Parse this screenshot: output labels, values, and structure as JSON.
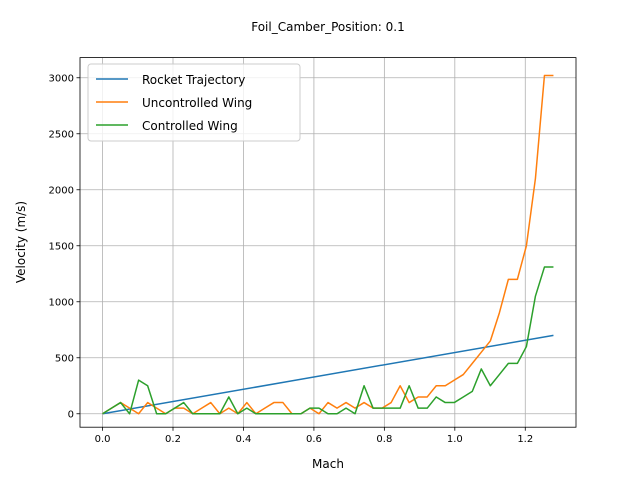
{
  "chart_data": {
    "type": "line",
    "title": "Foil_Camber_Position: 0.1",
    "xlabel": "Mach",
    "ylabel": "Velocity (m/s)",
    "xlim": [
      -0.064,
      1.344
    ],
    "ylim": [
      -120,
      3180
    ],
    "xticks": [
      0.0,
      0.2,
      0.4,
      0.6,
      0.8,
      1.0,
      1.2
    ],
    "xtick_labels": [
      "0.0",
      "0.2",
      "0.4",
      "0.6",
      "0.8",
      "1.0",
      "1.2"
    ],
    "yticks": [
      0,
      500,
      1000,
      1500,
      2000,
      2500,
      3000
    ],
    "ytick_labels": [
      "0",
      "500",
      "1000",
      "1500",
      "2000",
      "2500",
      "3000"
    ],
    "grid": true,
    "legend_position": "top-left",
    "x": [
      0.0,
      0.0256,
      0.0512,
      0.0768,
      0.1024,
      0.128,
      0.1536,
      0.1792,
      0.2048,
      0.2304,
      0.256,
      0.2816,
      0.3072,
      0.3328,
      0.3584,
      0.384,
      0.4096,
      0.4352,
      0.4608,
      0.4864,
      0.512,
      0.5376,
      0.5632,
      0.5888,
      0.6144,
      0.64,
      0.6656,
      0.6912,
      0.7168,
      0.7424,
      0.768,
      0.7936,
      0.8192,
      0.8448,
      0.8704,
      0.896,
      0.9216,
      0.9472,
      0.9728,
      0.9984,
      1.024,
      1.0496,
      1.0752,
      1.1008,
      1.1264,
      1.152,
      1.1776,
      1.2032,
      1.2288,
      1.2544,
      1.28
    ],
    "series": [
      {
        "name": "Rocket Trajectory",
        "color": "#1f77b4",
        "x": [
          0.0,
          1.28
        ],
        "values": [
          0,
          700
        ]
      },
      {
        "name": "Uncontrolled Wing",
        "color": "#ff7f0e",
        "values": [
          0,
          50,
          100,
          50,
          0,
          100,
          50,
          0,
          50,
          50,
          0,
          50,
          100,
          0,
          50,
          0,
          100,
          0,
          50,
          100,
          100,
          0,
          0,
          50,
          0,
          100,
          50,
          100,
          50,
          100,
          50,
          50,
          100,
          250,
          100,
          150,
          150,
          250,
          250,
          300,
          350,
          450,
          550,
          650,
          900,
          1200,
          1200,
          1500,
          2100,
          3020,
          3020
        ]
      },
      {
        "name": "Controlled Wing",
        "color": "#2ca02c",
        "values": [
          0,
          50,
          100,
          0,
          300,
          250,
          0,
          0,
          50,
          100,
          0,
          0,
          0,
          0,
          150,
          0,
          50,
          0,
          0,
          0,
          0,
          0,
          0,
          50,
          50,
          0,
          0,
          50,
          0,
          250,
          50,
          50,
          50,
          50,
          250,
          50,
          50,
          150,
          100,
          100,
          150,
          200,
          400,
          250,
          350,
          450,
          450,
          600,
          1050,
          1310,
          1310
        ]
      }
    ]
  }
}
